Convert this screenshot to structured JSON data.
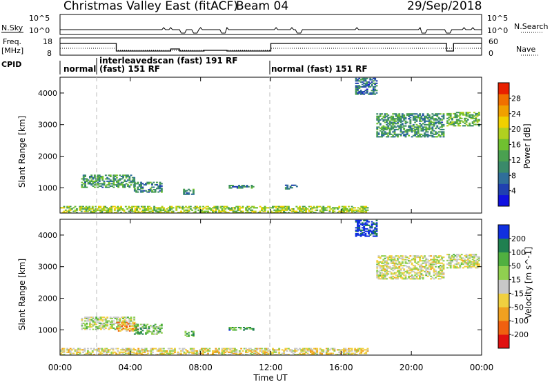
{
  "header": {
    "title": "Christmas Valley East (fitACF)",
    "beam": "Beam 04",
    "date": "29/Sep/2018"
  },
  "strip_panels": {
    "nsky": {
      "label": "N.Sky",
      "right_label": "N.Search",
      "left_ticks": [
        "10^5",
        "10^0"
      ],
      "right_ticks": [
        "10^5",
        "10^0"
      ]
    },
    "freq": {
      "label": "Freq.",
      "unit": "[MHz]",
      "left_ticks": [
        "18",
        "8"
      ],
      "right_ticks": [
        "60",
        "0"
      ],
      "right_label": "Nave"
    },
    "cpid": {
      "label": "CPID",
      "segments": [
        {
          "line1": "normal",
          "line2": ""
        },
        {
          "line1": "interleavedscan (fast) 191 RF",
          "line2": "(fast) 151 RF"
        },
        {
          "line1": "normal (fast) 151 RF",
          "line2": ""
        }
      ]
    }
  },
  "chart_data": [
    {
      "type": "heatmap",
      "name": "power",
      "ylabel": "Slant Range [km]",
      "yticks": [
        1000,
        2000,
        3000,
        4000
      ],
      "ylim": [
        200,
        4500
      ],
      "xlim": [
        0,
        24
      ],
      "colorbar": {
        "label": "Power [dB]",
        "ticks": [
          "28",
          "24",
          "20",
          "16",
          "12",
          "8",
          "4"
        ],
        "range": [
          0,
          30
        ],
        "colors": [
          "#1010e0",
          "#2040b0",
          "#2f6e9a",
          "#3a8a6a",
          "#4aa050",
          "#70c030",
          "#b0d020",
          "#f0d000",
          "#f0a000",
          "#f07000",
          "#e82000"
        ]
      },
      "regions": [
        {
          "t0": 0.0,
          "t1": 17.5,
          "r0": 200,
          "r1": 420,
          "level": 0.55
        },
        {
          "t0": 1.2,
          "t1": 4.2,
          "r0": 1000,
          "r1": 1400,
          "level": 0.35
        },
        {
          "t0": 4.2,
          "t1": 5.8,
          "r0": 850,
          "r1": 1180,
          "level": 0.3
        },
        {
          "t0": 7.0,
          "t1": 7.6,
          "r0": 780,
          "r1": 960,
          "level": 0.3
        },
        {
          "t0": 9.6,
          "t1": 11.0,
          "r0": 980,
          "r1": 1060,
          "level": 0.3
        },
        {
          "t0": 12.8,
          "t1": 13.5,
          "r0": 950,
          "r1": 1080,
          "level": 0.3
        },
        {
          "t0": 16.8,
          "t1": 18.0,
          "r0": 3950,
          "r1": 4450,
          "level": 0.25
        },
        {
          "t0": 18.0,
          "t1": 21.8,
          "r0": 2600,
          "r1": 3350,
          "level": 0.35
        },
        {
          "t0": 22.0,
          "t1": 23.8,
          "r0": 2950,
          "r1": 3400,
          "level": 0.45
        }
      ]
    },
    {
      "type": "heatmap",
      "name": "velocity",
      "ylabel": "Slant Range [km]",
      "yticks": [
        1000,
        2000,
        3000,
        4000
      ],
      "ylim": [
        200,
        4500
      ],
      "xlim": [
        0,
        24
      ],
      "colorbar": {
        "label": "Velocity [m s^-1]",
        "ticks": [
          "200",
          "100",
          "50",
          "15",
          "-15",
          "-50",
          "-100",
          "-200"
        ],
        "range": [
          -250,
          250
        ],
        "colors": [
          "#e01010",
          "#f06010",
          "#f0a020",
          "#f0d040",
          "#c8c8c8",
          "#90d050",
          "#50b040",
          "#208050",
          "#1030e0"
        ]
      },
      "regions": [
        {
          "t0": 0.0,
          "t1": 17.5,
          "r0": 200,
          "r1": 420,
          "level": 0.45
        },
        {
          "t0": 1.2,
          "t1": 4.2,
          "r0": 1000,
          "r1": 1400,
          "level": 0.55
        },
        {
          "t0": 3.2,
          "t1": 4.4,
          "r0": 950,
          "r1": 1250,
          "level": 0.3
        },
        {
          "t0": 4.2,
          "t1": 5.8,
          "r0": 850,
          "r1": 1180,
          "level": 0.7
        },
        {
          "t0": 7.0,
          "t1": 7.6,
          "r0": 780,
          "r1": 960,
          "level": 0.7
        },
        {
          "t0": 9.6,
          "t1": 11.0,
          "r0": 980,
          "r1": 1060,
          "level": 0.72
        },
        {
          "t0": 16.8,
          "t1": 18.0,
          "r0": 3950,
          "r1": 4450,
          "level": 0.95
        },
        {
          "t0": 18.0,
          "t1": 21.8,
          "r0": 2600,
          "r1": 3350,
          "level": 0.5
        },
        {
          "t0": 22.0,
          "t1": 23.8,
          "r0": 2950,
          "r1": 3400,
          "level": 0.5
        }
      ]
    }
  ],
  "x_axis": {
    "label": "Time UT",
    "ticks": [
      "00:00",
      "04:00",
      "08:00",
      "12:00",
      "16:00",
      "20:00",
      "00:00"
    ]
  }
}
